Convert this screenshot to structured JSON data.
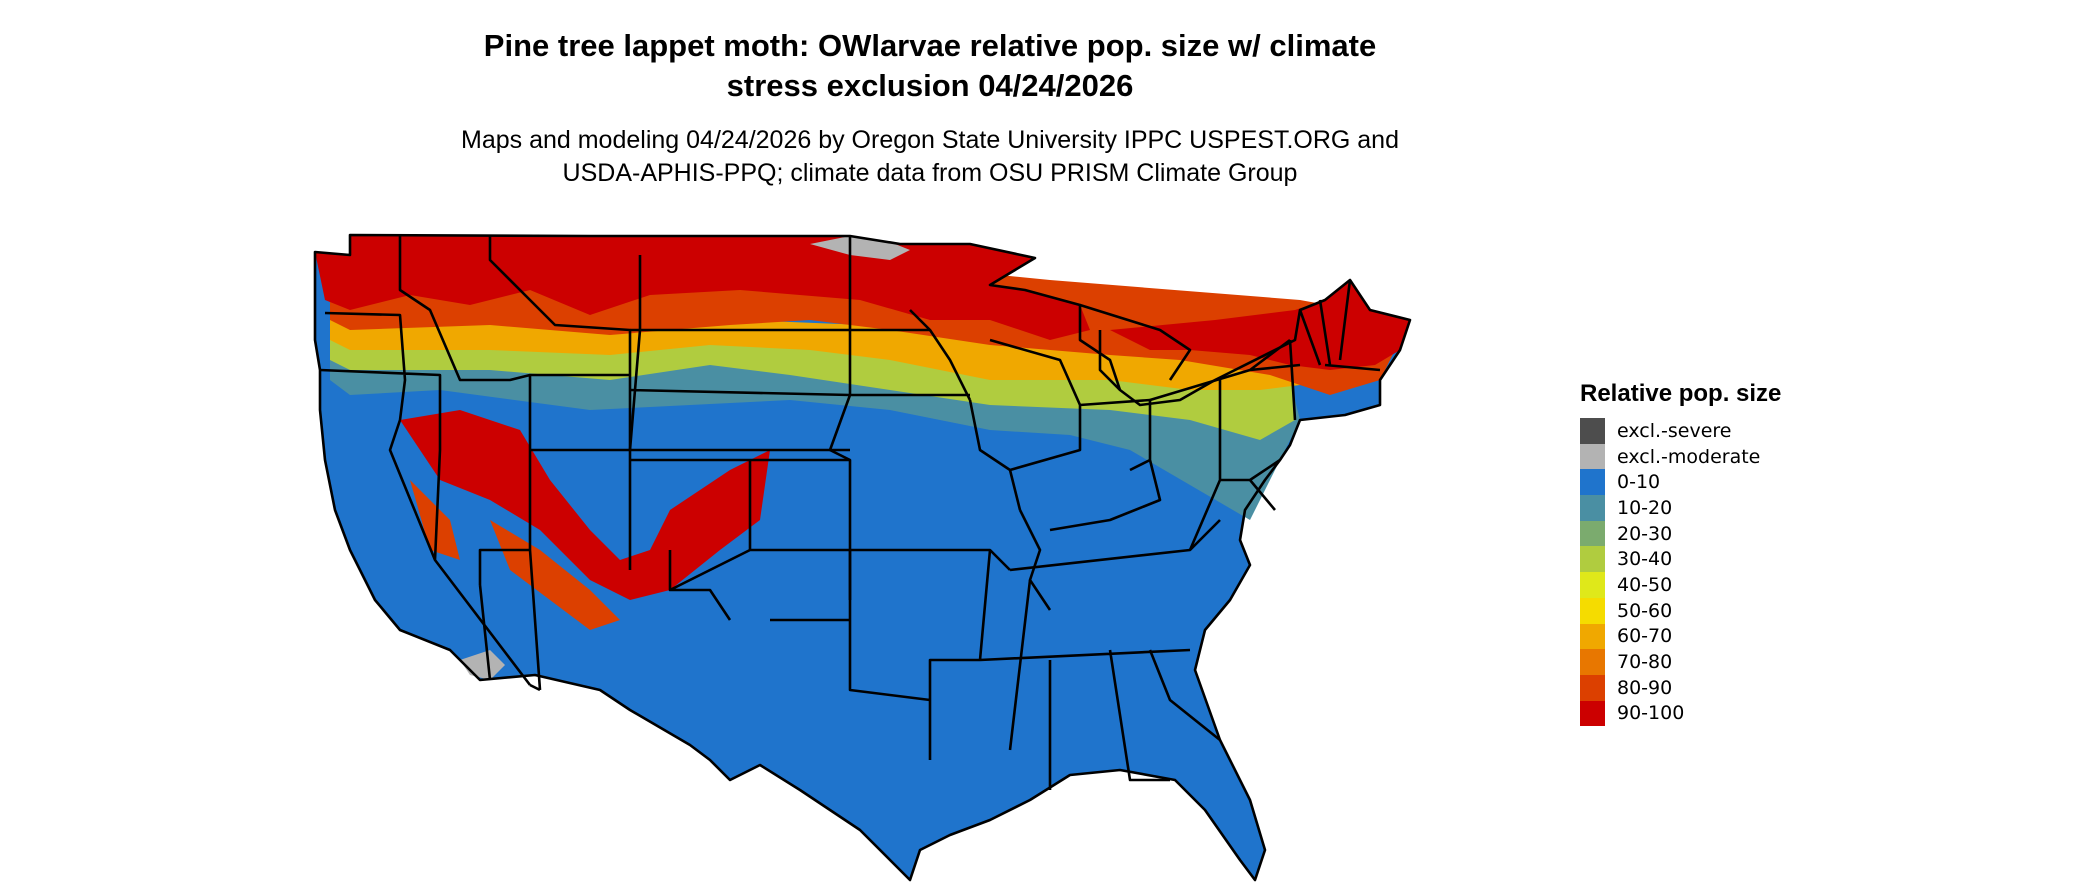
{
  "title": {
    "line1": "Pine tree lappet moth: OWlarvae relative pop. size w/ climate",
    "line2": "stress exclusion 04/24/2026"
  },
  "subtitle": {
    "line1": "Maps and modeling 04/24/2026 by Oregon State University IPPC USPEST.ORG and",
    "line2": "USDA-APHIS-PPQ; climate data from OSU PRISM Climate Group"
  },
  "legend": {
    "title": "Relative pop. size",
    "items": [
      {
        "label": "excl.-severe",
        "color": "#4d4d4d"
      },
      {
        "label": "excl.-moderate",
        "color": "#b3b3b3"
      },
      {
        "label": "0-10",
        "color": "#1f74cc"
      },
      {
        "label": "10-20",
        "color": "#4a8fa3"
      },
      {
        "label": "20-30",
        "color": "#7bab6e"
      },
      {
        "label": "30-40",
        "color": "#b0cc3f"
      },
      {
        "label": "40-50",
        "color": "#dfe81a"
      },
      {
        "label": "50-60",
        "color": "#f5dc00"
      },
      {
        "label": "60-70",
        "color": "#f0a800"
      },
      {
        "label": "70-80",
        "color": "#e87700"
      },
      {
        "label": "80-90",
        "color": "#dc4000"
      },
      {
        "label": "90-100",
        "color": "#cc0000"
      }
    ]
  },
  "map": {
    "region": "conterminous-united-states",
    "colors": {
      "low": "#1f74cc",
      "band10": "#4a8fa3",
      "band20": "#7bab6e",
      "band30": "#b0cc3f",
      "band40": "#dfe81a",
      "band60": "#f0a800",
      "band70": "#e87700",
      "band80": "#dc4000",
      "high": "#cc0000",
      "excluded": "#b3b3b3",
      "border": "#000000"
    }
  }
}
